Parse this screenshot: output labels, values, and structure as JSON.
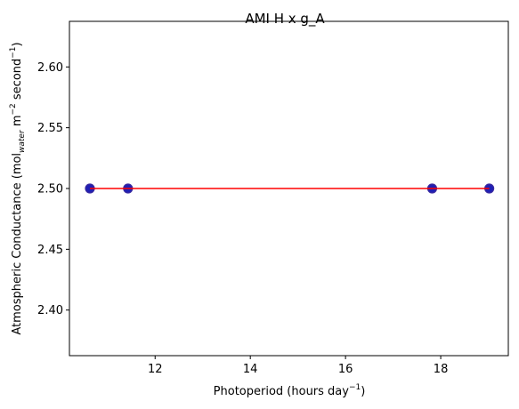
{
  "chart_data": {
    "type": "scatter",
    "title": "AMI H x g_A",
    "xlabel": "Photoperiod (hours day",
    "xlabel_sup": "−1",
    "xlabel_end": ")",
    "ylabel": "Atmospheric Conductance (mol",
    "ylabel_sub": "water",
    "ylabel_mid": " m",
    "ylabel_sup1": "−2",
    "ylabel_mid2": " second",
    "ylabel_sup2": "−1",
    "ylabel_end": ")",
    "xlim": [
      10.2,
      19.42
    ],
    "ylim": [
      2.3625,
      2.6375
    ],
    "xticks": [
      12,
      14,
      16,
      18
    ],
    "xtick_labels": [
      "12",
      "14",
      "16",
      "18"
    ],
    "yticks": [
      2.4,
      2.45,
      2.5,
      2.55,
      2.6
    ],
    "ytick_labels": [
      "2.40",
      "2.45",
      "2.50",
      "2.55",
      "2.60"
    ],
    "series": [
      {
        "kind": "points",
        "x": [
          10.63,
          11.43,
          17.82,
          19.02
        ],
        "y": [
          2.5,
          2.5,
          2.5,
          2.5
        ],
        "color": "#1f1fb4",
        "edge_color": "#3a2aa0"
      },
      {
        "kind": "line",
        "x": [
          10.63,
          19.02
        ],
        "y": [
          2.5,
          2.5
        ],
        "color": "#ff0000"
      }
    ],
    "grid": false,
    "legend": "none"
  }
}
